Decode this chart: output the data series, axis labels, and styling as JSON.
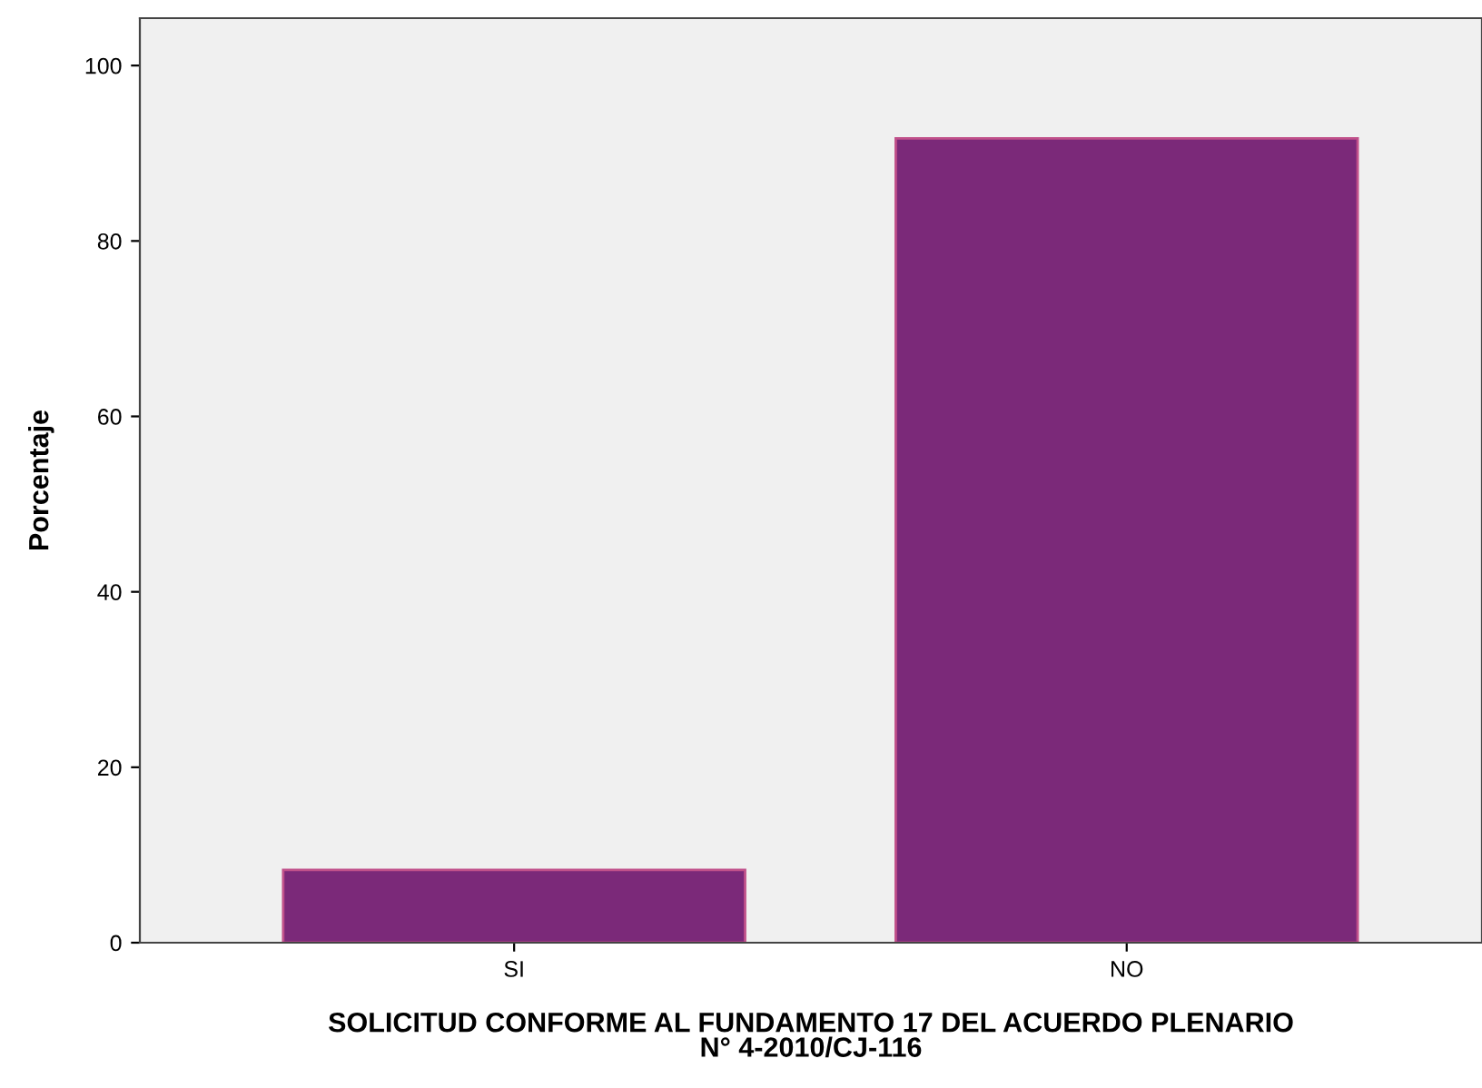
{
  "chart_data": {
    "type": "bar",
    "xlabel": "SOLICITUD CONFORME AL FUNDAMENTO 17 DEL ACUERDO PLENARIO\nN° 4-2010/CJ-116",
    "ylabel": "Porcentaje",
    "categories": [
      "SI",
      "NO"
    ],
    "values": [
      8.3,
      91.7
    ],
    "color": "#7b2979",
    "ylim": [
      0,
      105.4
    ],
    "yticks": [
      0,
      20,
      40,
      60,
      80,
      100
    ],
    "grid": false
  }
}
